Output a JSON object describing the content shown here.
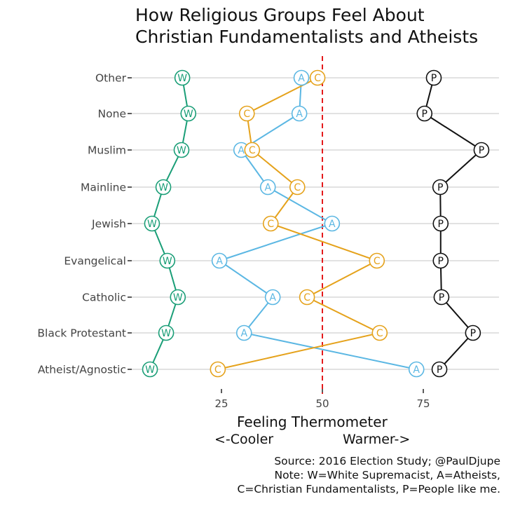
{
  "title": {
    "line1": "How Religious Groups Feel About",
    "line2": "Christian Fundamentalists and Atheists"
  },
  "caption": {
    "line1": "Source: 2016 Election Study; @PaulDjupe",
    "line2": "Note: W=White Supremacist, A=Atheists,",
    "line3": "C=Christian Fundamentalists, P=People like me."
  },
  "axis": {
    "xlabel": "Feeling Thermometer",
    "cooler": "<-Cooler",
    "warmer": "Warmer->"
  },
  "colors": {
    "W": "#1a9e77",
    "A": "#5bb7e3",
    "C": "#e5a21b",
    "P": "#111111",
    "reference_line": "#e41a1c",
    "grid": "#d9d9d9"
  },
  "chart_data": {
    "type": "line",
    "title": "How Religious Groups Feel About Christian Fundamentalists and Atheists",
    "xlabel": "Feeling Thermometer  <-Cooler  Warmer->",
    "ylabel": "",
    "xlim": [
      2,
      95
    ],
    "x_ticks": [
      25,
      50,
      75
    ],
    "reference_line": 50,
    "grid": "horizontal",
    "categories": [
      "Other",
      "None",
      "Muslim",
      "Mainline",
      "Jewish",
      "Evangelical",
      "Catholic",
      "Black Protestant",
      "Atheist/Agnostic"
    ],
    "series": [
      {
        "name": "White Supremacist",
        "marker": "W",
        "values": [
          15.3,
          16.8,
          15.1,
          10.6,
          7.8,
          11.6,
          14.2,
          11.3,
          7.3
        ]
      },
      {
        "name": "Atheists",
        "marker": "A",
        "values": [
          44.8,
          44.3,
          29.9,
          36.5,
          52.4,
          24.5,
          37.7,
          30.6,
          73.3
        ]
      },
      {
        "name": "Christian Fundamentalists",
        "marker": "C",
        "values": [
          48.8,
          31.3,
          32.6,
          43.8,
          37.2,
          63.5,
          46.2,
          64.2,
          24.1
        ]
      },
      {
        "name": "People like me",
        "marker": "P",
        "values": [
          77.6,
          75.3,
          89.4,
          79.2,
          79.3,
          79.3,
          79.5,
          87.3,
          79.0
        ]
      }
    ]
  }
}
